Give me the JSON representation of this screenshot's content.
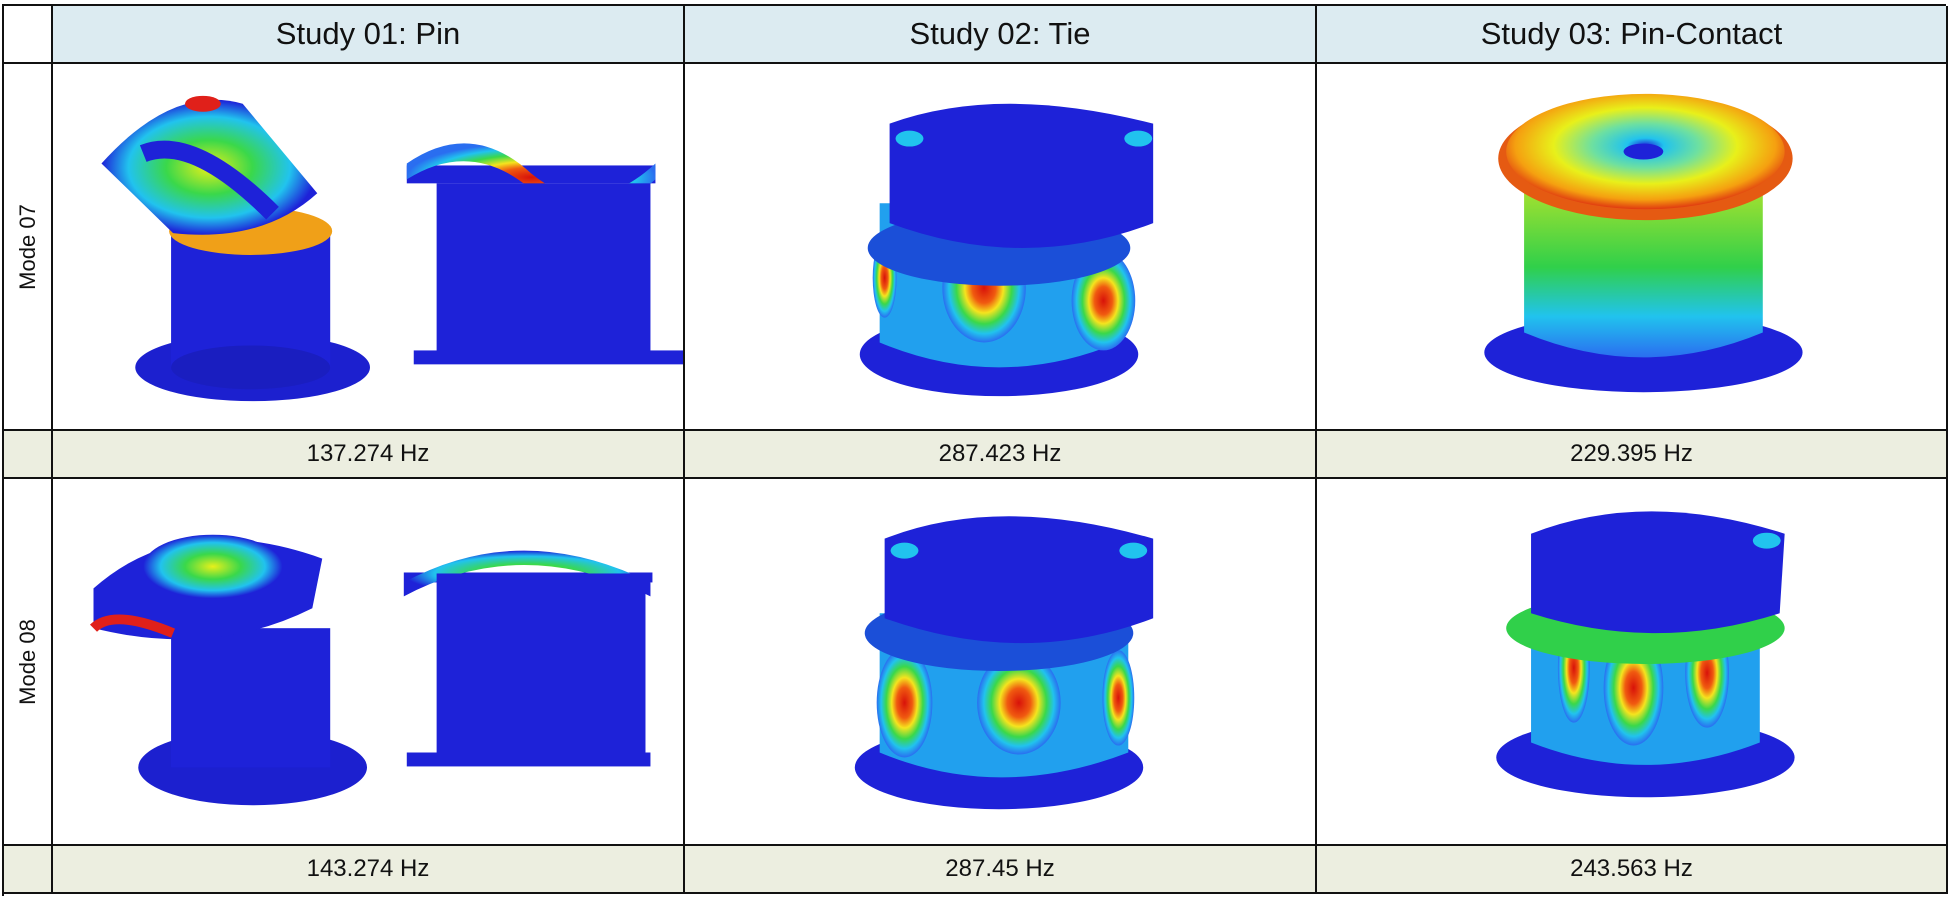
{
  "table": {
    "columns": [
      "Study 01: Pin",
      "Study 02: Tie",
      "Study 03: Pin-Contact"
    ],
    "rows": [
      {
        "label": "Mode 07",
        "frequencies": [
          "137.274 Hz",
          "287.423 Hz",
          "229.395 Hz"
        ]
      },
      {
        "label": "Mode 08",
        "frequencies": [
          "143.274 Hz",
          "287.45 Hz",
          "243.563 Hz"
        ]
      }
    ]
  },
  "colors": {
    "header_bg": "#dcebf1",
    "freq_bg": "#eceee0",
    "contour_blue": "#1e22d8",
    "contour_red": "#e01a10",
    "contour_yellow": "#f0e820",
    "contour_green": "#30d04a",
    "contour_cyan": "#22c8ee"
  }
}
